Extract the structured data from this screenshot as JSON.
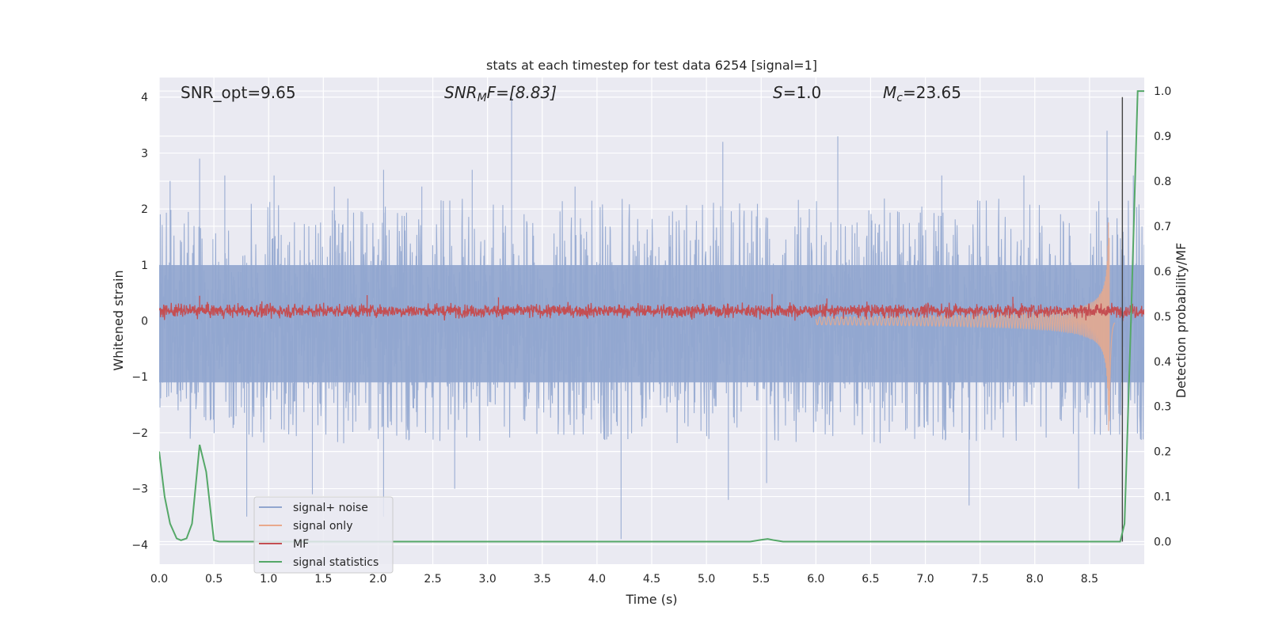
{
  "chart_data": {
    "type": "line",
    "title": "stats at each timestep for test data 6254 [signal=1]",
    "xlabel": "Time (s)",
    "ylabel": "Whitened strain",
    "ylabel_right": "Detection probability/MF",
    "xlim": [
      0.0,
      9.0
    ],
    "ylim": [
      -4.35,
      4.35
    ],
    "ylim_right": [
      -0.05,
      1.03
    ],
    "xticks": [
      "0.0",
      "0.5",
      "1.0",
      "1.5",
      "2.0",
      "2.5",
      "3.0",
      "3.5",
      "4.0",
      "4.5",
      "5.0",
      "5.5",
      "6.0",
      "6.5",
      "7.0",
      "7.5",
      "8.0",
      "8.5"
    ],
    "xtick_values": [
      0.0,
      0.5,
      1.0,
      1.5,
      2.0,
      2.5,
      3.0,
      3.5,
      4.0,
      4.5,
      5.0,
      5.5,
      6.0,
      6.5,
      7.0,
      7.5,
      8.0,
      8.5
    ],
    "yticks": [
      "4",
      "3",
      "2",
      "1",
      "0",
      "−1",
      "−2",
      "−3",
      "−4"
    ],
    "ytick_values": [
      4,
      3,
      2,
      1,
      0,
      -1,
      -2,
      -3,
      -4
    ],
    "yticks_right": [
      "1.0",
      "0.9",
      "0.8",
      "0.7",
      "0.6",
      "0.5",
      "0.4",
      "0.3",
      "0.2",
      "0.1",
      "0.0"
    ],
    "ytick_values_right": [
      1.0,
      0.9,
      0.8,
      0.7,
      0.6,
      0.5,
      0.4,
      0.3,
      0.2,
      0.1,
      0.0
    ],
    "annotations": {
      "snr_opt": "SNR_opt=9.65",
      "snr_mf_base": "SNR",
      "snr_mf_sub": "M",
      "snr_mf_rest": "F=[8.83]",
      "s_stat_var": "S",
      "s_stat_rest": "=1.0",
      "mc_var": "M",
      "mc_sub": "c",
      "mc_rest": "=23.65"
    },
    "legend": {
      "position": "lower-left",
      "entries": [
        {
          "label": "signal+ noise",
          "color": "#91a6cf"
        },
        {
          "label": "signal only",
          "color": "#e9a98c"
        },
        {
          "label": "MF",
          "color": "#c44e52"
        },
        {
          "label": "signal statistics",
          "color": "#55a868"
        }
      ]
    },
    "vline_x": 8.8,
    "series": [
      {
        "name": "signal statistics",
        "axis": "right",
        "color": "#55a868",
        "x": [
          0.0,
          0.05,
          0.1,
          0.16,
          0.2,
          0.25,
          0.3,
          0.37,
          0.43,
          0.5,
          0.55,
          0.6,
          5.4,
          5.5,
          5.56,
          5.62,
          5.7,
          8.7,
          8.78,
          8.82,
          8.88,
          8.94,
          9.0
        ],
        "y": [
          0.2,
          0.1,
          0.04,
          0.007,
          0.003,
          0.007,
          0.04,
          0.215,
          0.155,
          0.003,
          0.0,
          0.0,
          0.0,
          0.004,
          0.006,
          0.003,
          0.0,
          0.0,
          0.0,
          0.04,
          0.5,
          1.0,
          1.0
        ]
      },
      {
        "name": "MF",
        "axis": "left",
        "color": "#c44e52",
        "mean": 0.18,
        "spread": 0.13,
        "peaks": [
          [
            0.37,
            0.45
          ],
          [
            1.9,
            0.46
          ],
          [
            3.1,
            0.42
          ],
          [
            5.6,
            0.48
          ],
          [
            6.1,
            0.4
          ],
          [
            7.8,
            0.43
          ]
        ]
      },
      {
        "name": "signal+ noise",
        "axis": "left",
        "color": "#91a6cf",
        "upper_band": 1.0,
        "lower_band": -1.1,
        "peaks": [
          [
            0.1,
            2.5
          ],
          [
            0.37,
            2.9
          ],
          [
            0.6,
            2.6
          ],
          [
            1.05,
            2.6
          ],
          [
            1.6,
            2.4
          ],
          [
            2.05,
            2.7
          ],
          [
            2.4,
            2.4
          ],
          [
            2.86,
            2.7
          ],
          [
            3.22,
            4.0
          ],
          [
            3.8,
            2.4
          ],
          [
            4.22,
            -3.9
          ],
          [
            5.15,
            3.2
          ],
          [
            5.55,
            -2.9
          ],
          [
            6.2,
            3.3
          ],
          [
            7.15,
            2.6
          ],
          [
            7.9,
            2.6
          ],
          [
            8.66,
            3.4
          ],
          [
            8.9,
            2.6
          ],
          [
            0.8,
            -3.5
          ],
          [
            1.4,
            -3.1
          ],
          [
            2.05,
            -3.5
          ],
          [
            2.7,
            -3.0
          ],
          [
            5.2,
            -3.2
          ],
          [
            7.4,
            -3.3
          ],
          [
            8.4,
            -3.0
          ]
        ]
      },
      {
        "name": "signal only",
        "axis": "left",
        "color": "#e9a98c",
        "chirp_start": 6.0,
        "merger": 8.68,
        "peak_amplitude": 2.0
      }
    ]
  }
}
